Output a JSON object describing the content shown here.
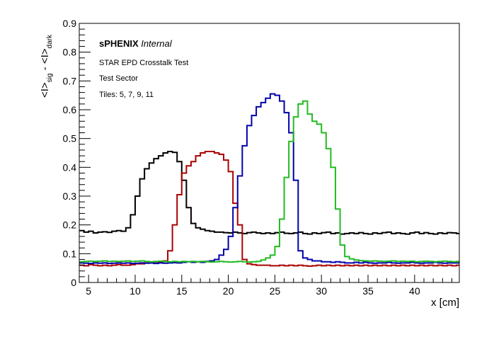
{
  "chart_data": {
    "type": "line",
    "step": true,
    "xlabel": "x [cm]",
    "ylabel": "<I>sig - <I>dark",
    "ylabel_parts": {
      "main1": "<I>",
      "sub1": "sig",
      "mid": " - <I>",
      "sub2": "dark"
    },
    "xlim": [
      4.0,
      44.8
    ],
    "ylim": [
      0,
      0.9
    ],
    "xticks": [
      "5",
      "10",
      "15",
      "20",
      "25",
      "30",
      "35",
      "40"
    ],
    "yticks": [
      "0",
      "0.1",
      "0.2",
      "0.3",
      "0.4",
      "0.5",
      "0.6",
      "0.7",
      "0.8",
      "0.9"
    ],
    "grid": false,
    "bin_width": 0.5,
    "series": [
      {
        "color": "#000000",
        "values": [
          0.18,
          0.175,
          0.178,
          0.172,
          0.175,
          0.176,
          0.174,
          0.178,
          0.18,
          0.178,
          0.19,
          0.235,
          0.3,
          0.36,
          0.395,
          0.415,
          0.43,
          0.44,
          0.45,
          0.455,
          0.452,
          0.42,
          0.355,
          0.26,
          0.205,
          0.19,
          0.185,
          0.18,
          0.178,
          0.175,
          0.175,
          0.173,
          0.172,
          0.175,
          0.172,
          0.17,
          0.173,
          0.175,
          0.172,
          0.17,
          0.172,
          0.17,
          0.173,
          0.175,
          0.171,
          0.17,
          0.172,
          0.175,
          0.17,
          0.168,
          0.172,
          0.17,
          0.173,
          0.175,
          0.17,
          0.172,
          0.168,
          0.17,
          0.172,
          0.17,
          0.173,
          0.17,
          0.168,
          0.172,
          0.17,
          0.173,
          0.175,
          0.17,
          0.172,
          0.17,
          0.168,
          0.172,
          0.175,
          0.17,
          0.173,
          0.17,
          0.168,
          0.172,
          0.17,
          0.173,
          0.172,
          0.17
        ]
      },
      {
        "color": "#aa0000",
        "values": [
          0.06,
          0.058,
          0.062,
          0.06,
          0.058,
          0.06,
          0.058,
          0.06,
          0.062,
          0.06,
          0.06,
          0.062,
          0.065,
          0.065,
          0.068,
          0.068,
          0.068,
          0.07,
          0.075,
          0.11,
          0.2,
          0.305,
          0.38,
          0.405,
          0.42,
          0.44,
          0.45,
          0.455,
          0.455,
          0.45,
          0.445,
          0.425,
          0.385,
          0.275,
          0.2,
          0.08,
          0.065,
          0.062,
          0.06,
          0.06,
          0.06,
          0.058,
          0.058,
          0.06,
          0.058,
          0.06,
          0.058,
          0.06,
          0.058,
          0.057,
          0.058,
          0.06,
          0.058,
          0.06,
          0.058,
          0.06,
          0.058,
          0.06,
          0.058,
          0.06,
          0.058,
          0.06,
          0.058,
          0.06,
          0.058,
          0.06,
          0.058,
          0.06,
          0.058,
          0.06,
          0.058,
          0.06,
          0.058,
          0.06,
          0.058,
          0.06,
          0.058,
          0.06,
          0.058,
          0.06,
          0.058,
          0.06
        ]
      },
      {
        "color": "#0000aa",
        "values": [
          0.068,
          0.067,
          0.066,
          0.068,
          0.067,
          0.068,
          0.066,
          0.067,
          0.068,
          0.067,
          0.068,
          0.066,
          0.067,
          0.068,
          0.067,
          0.068,
          0.066,
          0.068,
          0.067,
          0.068,
          0.069,
          0.068,
          0.07,
          0.072,
          0.07,
          0.072,
          0.07,
          0.073,
          0.075,
          0.08,
          0.095,
          0.115,
          0.16,
          0.26,
          0.37,
          0.475,
          0.545,
          0.58,
          0.61,
          0.625,
          0.64,
          0.655,
          0.65,
          0.63,
          0.59,
          0.52,
          0.355,
          0.11,
          0.085,
          0.08,
          0.075,
          0.075,
          0.072,
          0.072,
          0.07,
          0.072,
          0.07,
          0.068,
          0.068,
          0.07,
          0.068,
          0.07,
          0.068,
          0.067,
          0.068,
          0.068,
          0.07,
          0.068,
          0.067,
          0.068,
          0.068,
          0.07,
          0.068,
          0.067,
          0.068,
          0.068,
          0.07,
          0.068,
          0.067,
          0.068,
          0.068,
          0.068
        ]
      },
      {
        "color": "#22bb22",
        "values": [
          0.072,
          0.073,
          0.074,
          0.073,
          0.074,
          0.075,
          0.073,
          0.074,
          0.073,
          0.074,
          0.075,
          0.073,
          0.074,
          0.075,
          0.073,
          0.072,
          0.073,
          0.074,
          0.073,
          0.072,
          0.073,
          0.072,
          0.073,
          0.072,
          0.073,
          0.072,
          0.073,
          0.072,
          0.071,
          0.072,
          0.073,
          0.072,
          0.071,
          0.072,
          0.073,
          0.072,
          0.071,
          0.072,
          0.073,
          0.078,
          0.085,
          0.095,
          0.125,
          0.22,
          0.365,
          0.49,
          0.575,
          0.62,
          0.63,
          0.585,
          0.56,
          0.55,
          0.52,
          0.465,
          0.4,
          0.255,
          0.13,
          0.09,
          0.082,
          0.078,
          0.076,
          0.075,
          0.074,
          0.075,
          0.074,
          0.073,
          0.074,
          0.075,
          0.073,
          0.074,
          0.073,
          0.074,
          0.072,
          0.073,
          0.074,
          0.073,
          0.072,
          0.073,
          0.074,
          0.073,
          0.072,
          0.073
        ]
      }
    ],
    "annotations": {
      "sphenix_bold": "sPHENIX",
      "sphenix_italic": "Internal",
      "line1": "STAR EPD Crosstalk Test",
      "line2": "Test Sector",
      "line3": "Tiles: 5, 7, 9, 11"
    }
  }
}
